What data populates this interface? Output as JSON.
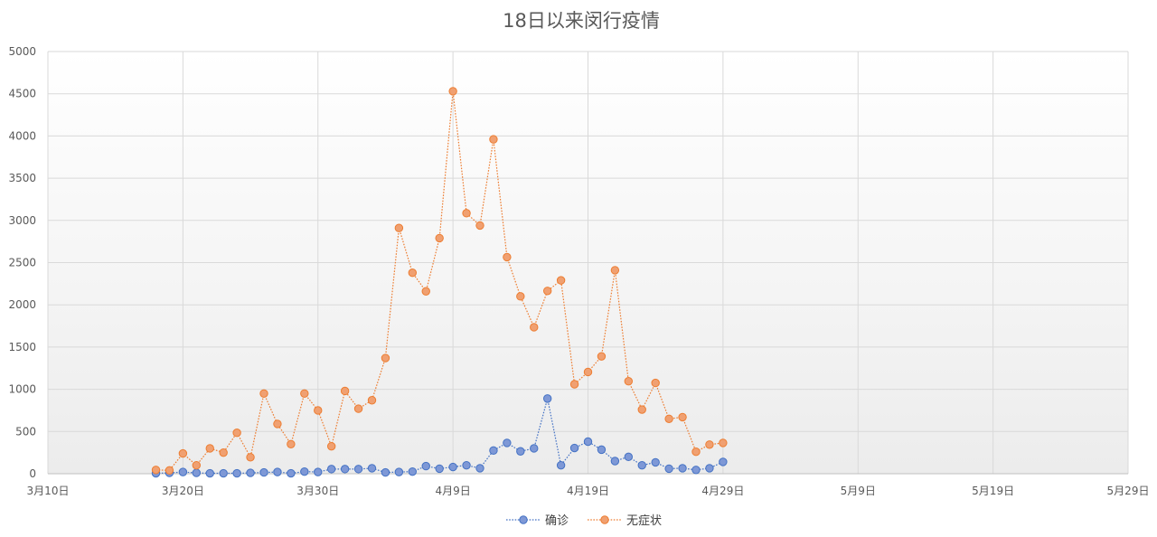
{
  "chart_data": {
    "type": "scatter",
    "title": "18日以来闵行疫情",
    "xlabel": "",
    "ylabel": "",
    "x_range": [
      "2022-03-10",
      "2022-05-29"
    ],
    "ylim": [
      0,
      5000
    ],
    "y_ticks": [
      0,
      500,
      1000,
      1500,
      2000,
      2500,
      3000,
      3500,
      4000,
      4500,
      5000
    ],
    "x_ticks": [
      {
        "date": "2022-03-10",
        "label": "3月10日"
      },
      {
        "date": "2022-03-20",
        "label": "3月20日"
      },
      {
        "date": "2022-03-30",
        "label": "3月30日"
      },
      {
        "date": "2022-04-09",
        "label": "4月9日"
      },
      {
        "date": "2022-04-19",
        "label": "4月19日"
      },
      {
        "date": "2022-04-29",
        "label": "4月29日"
      },
      {
        "date": "2022-05-09",
        "label": "5月9日"
      },
      {
        "date": "2022-05-19",
        "label": "5月19日"
      },
      {
        "date": "2022-05-29",
        "label": "5月29日"
      }
    ],
    "grid": true,
    "legend_position": "bottom",
    "series": [
      {
        "name": "确诊",
        "color": "#4472C4",
        "fill": "#7e98d6",
        "points": [
          [
            "2022-03-18",
            5
          ],
          [
            "2022-03-19",
            10
          ],
          [
            "2022-03-20",
            20
          ],
          [
            "2022-03-21",
            10
          ],
          [
            "2022-03-22",
            5
          ],
          [
            "2022-03-23",
            5
          ],
          [
            "2022-03-24",
            5
          ],
          [
            "2022-03-25",
            10
          ],
          [
            "2022-03-26",
            15
          ],
          [
            "2022-03-27",
            20
          ],
          [
            "2022-03-28",
            5
          ],
          [
            "2022-03-29",
            25
          ],
          [
            "2022-03-30",
            20
          ],
          [
            "2022-03-31",
            55
          ],
          [
            "2022-04-01",
            55
          ],
          [
            "2022-04-02",
            55
          ],
          [
            "2022-04-03",
            65
          ],
          [
            "2022-04-04",
            15
          ],
          [
            "2022-04-05",
            20
          ],
          [
            "2022-04-06",
            25
          ],
          [
            "2022-04-07",
            90
          ],
          [
            "2022-04-08",
            60
          ],
          [
            "2022-04-09",
            80
          ],
          [
            "2022-04-10",
            100
          ],
          [
            "2022-04-11",
            65
          ],
          [
            "2022-04-12",
            275
          ],
          [
            "2022-04-13",
            365
          ],
          [
            "2022-04-14",
            265
          ],
          [
            "2022-04-15",
            300
          ],
          [
            "2022-04-16",
            890
          ],
          [
            "2022-04-17",
            100
          ],
          [
            "2022-04-18",
            305
          ],
          [
            "2022-04-19",
            380
          ],
          [
            "2022-04-20",
            285
          ],
          [
            "2022-04-21",
            150
          ],
          [
            "2022-04-22",
            200
          ],
          [
            "2022-04-23",
            100
          ],
          [
            "2022-04-24",
            135
          ],
          [
            "2022-04-25",
            60
          ],
          [
            "2022-04-26",
            65
          ],
          [
            "2022-04-27",
            45
          ],
          [
            "2022-04-28",
            65
          ],
          [
            "2022-04-29",
            140
          ]
        ]
      },
      {
        "name": "无症状",
        "color": "#ED7D31",
        "fill": "#f0a071",
        "points": [
          [
            "2022-03-18",
            45
          ],
          [
            "2022-03-19",
            40
          ],
          [
            "2022-03-20",
            240
          ],
          [
            "2022-03-21",
            100
          ],
          [
            "2022-03-22",
            300
          ],
          [
            "2022-03-23",
            250
          ],
          [
            "2022-03-24",
            485
          ],
          [
            "2022-03-25",
            195
          ],
          [
            "2022-03-26",
            950
          ],
          [
            "2022-03-27",
            590
          ],
          [
            "2022-03-28",
            350
          ],
          [
            "2022-03-29",
            950
          ],
          [
            "2022-03-30",
            750
          ],
          [
            "2022-03-31",
            325
          ],
          [
            "2022-04-01",
            980
          ],
          [
            "2022-04-02",
            770
          ],
          [
            "2022-04-03",
            870
          ],
          [
            "2022-04-04",
            1370
          ],
          [
            "2022-04-05",
            2910
          ],
          [
            "2022-04-06",
            2380
          ],
          [
            "2022-04-07",
            2160
          ],
          [
            "2022-04-08",
            2790
          ],
          [
            "2022-04-09",
            4530
          ],
          [
            "2022-04-10",
            3085
          ],
          [
            "2022-04-11",
            2940
          ],
          [
            "2022-04-12",
            3960
          ],
          [
            "2022-04-13",
            2565
          ],
          [
            "2022-04-14",
            2100
          ],
          [
            "2022-04-15",
            1735
          ],
          [
            "2022-04-16",
            2165
          ],
          [
            "2022-04-17",
            2290
          ],
          [
            "2022-04-18",
            1060
          ],
          [
            "2022-04-19",
            1205
          ],
          [
            "2022-04-20",
            1390
          ],
          [
            "2022-04-21",
            2410
          ],
          [
            "2022-04-22",
            1095
          ],
          [
            "2022-04-23",
            760
          ],
          [
            "2022-04-24",
            1075
          ],
          [
            "2022-04-25",
            650
          ],
          [
            "2022-04-26",
            670
          ],
          [
            "2022-04-27",
            260
          ],
          [
            "2022-04-28",
            345
          ],
          [
            "2022-04-29",
            365
          ]
        ]
      }
    ]
  }
}
